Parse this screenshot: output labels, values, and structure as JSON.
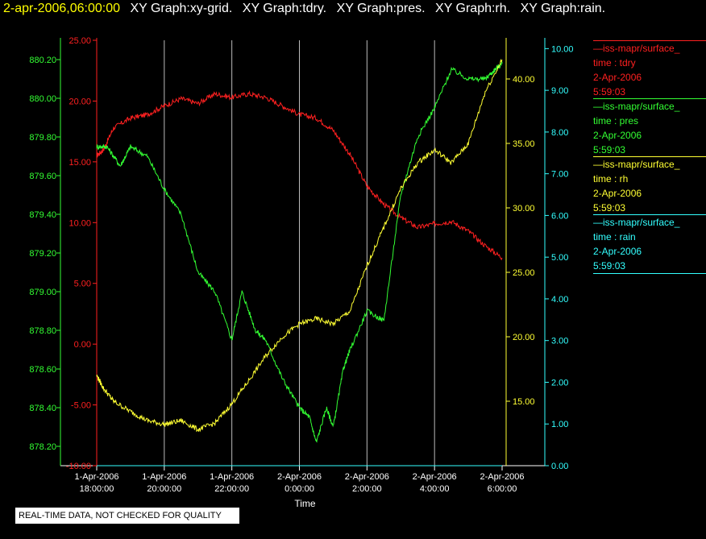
{
  "header": {
    "date": "2-apr-2006,06:00:00",
    "graphs": [
      "XY Graph:xy-grid.",
      "XY Graph:tdry.",
      "XY Graph:pres.",
      "XY Graph:rh.",
      "XY Graph:rain."
    ]
  },
  "legend": [
    {
      "source": "—iss-mapr/surface_",
      "field": "time : tdry",
      "date": "2-Apr-2006",
      "time": "5:59:03",
      "color": "#ff2020"
    },
    {
      "source": "—iss-mapr/surface_",
      "field": "time : pres",
      "date": "2-Apr-2006",
      "time": "5:59:03",
      "color": "#33ff33"
    },
    {
      "source": "—iss-mapr/surface_",
      "field": "time : rh",
      "date": "2-Apr-2006",
      "time": "5:59:03",
      "color": "#ffff33"
    },
    {
      "source": "—iss-mapr/surface_",
      "field": "time : rain",
      "date": "2-Apr-2006",
      "time": "5:59:03",
      "color": "#33ffff"
    }
  ],
  "note": "REAL-TIME DATA, NOT CHECKED FOR QUALITY",
  "colors": {
    "tdry": "#ff2020",
    "pres": "#33ff33",
    "rh": "#ffff33",
    "rain": "#33ffff",
    "grid": "#bbbbbb"
  },
  "chart_data": {
    "type": "line",
    "xlabel": "Time",
    "x_tick_labels": [
      [
        "1-Apr-2006",
        "18:00:00"
      ],
      [
        "1-Apr-2006",
        "20:00:00"
      ],
      [
        "1-Apr-2006",
        "22:00:00"
      ],
      [
        "2-Apr-2006",
        "0:00:00"
      ],
      [
        "2-Apr-2006",
        "2:00:00"
      ],
      [
        "2-Apr-2006",
        "4:00:00"
      ],
      [
        "2-Apr-2006",
        "6:00:00"
      ]
    ],
    "x_range_hours": [
      18,
      30
    ],
    "axes": {
      "tdry": {
        "ylim": [
          -10,
          25
        ],
        "ticks": [
          "-10.00",
          "-5.00",
          "0.00",
          "5.00",
          "10.00",
          "15.00",
          "20.00",
          "25.00"
        ]
      },
      "pres": {
        "ylim": [
          878.1,
          880.3
        ],
        "ticks": [
          "878.20",
          "878.40",
          "878.60",
          "878.80",
          "879.00",
          "879.20",
          "879.40",
          "879.60",
          "879.80",
          "880.00",
          "880.20"
        ]
      },
      "rh": {
        "ylim": [
          10,
          43
        ],
        "ticks": [
          "15.00",
          "20.00",
          "25.00",
          "30.00",
          "35.00",
          "40.00"
        ]
      },
      "rain": {
        "ylim": [
          0,
          10.2
        ],
        "ticks": [
          "0.00",
          "1.00",
          "2.00",
          "3.00",
          "4.00",
          "5.00",
          "6.00",
          "7.00",
          "8.00",
          "9.00",
          "10.00"
        ]
      }
    },
    "series": [
      {
        "name": "time : tdry",
        "key": "tdry",
        "x": [
          18.0,
          18.2,
          18.5,
          19.0,
          19.5,
          20.0,
          20.5,
          21.0,
          21.5,
          22.0,
          22.5,
          23.0,
          23.5,
          24.0,
          24.5,
          25.0,
          25.5,
          26.0,
          26.5,
          27.0,
          27.5,
          28.0,
          28.5,
          29.0,
          29.5,
          30.0
        ],
        "y": [
          15.5,
          16.0,
          17.8,
          18.6,
          18.9,
          19.6,
          20.2,
          19.8,
          20.6,
          20.3,
          20.6,
          20.3,
          19.6,
          18.9,
          18.6,
          17.6,
          15.6,
          13.0,
          11.5,
          10.4,
          9.6,
          9.9,
          10.1,
          9.3,
          8.1,
          7.1
        ]
      },
      {
        "name": "time : pres",
        "key": "pres",
        "x": [
          18.0,
          18.3,
          18.7,
          19.0,
          19.5,
          20.0,
          20.5,
          21.0,
          21.5,
          22.0,
          22.3,
          22.7,
          23.0,
          23.5,
          24.0,
          24.3,
          24.5,
          24.8,
          25.0,
          25.3,
          25.5,
          26.0,
          26.5,
          27.0,
          27.5,
          28.0,
          28.5,
          29.0,
          29.5,
          29.8,
          30.0
        ],
        "y": [
          879.75,
          879.75,
          879.65,
          879.75,
          879.7,
          879.53,
          879.4,
          879.1,
          879.0,
          878.75,
          879.0,
          878.8,
          878.75,
          878.55,
          878.4,
          878.35,
          878.22,
          878.4,
          878.3,
          878.6,
          878.7,
          878.9,
          878.85,
          879.5,
          879.8,
          879.95,
          880.15,
          880.1,
          880.1,
          880.15,
          880.18
        ]
      },
      {
        "name": "time : rh",
        "key": "rh",
        "x": [
          18.0,
          18.2,
          18.5,
          19.0,
          19.5,
          20.0,
          20.5,
          21.0,
          21.5,
          22.0,
          22.5,
          23.0,
          23.5,
          24.0,
          24.5,
          25.0,
          25.5,
          26.0,
          26.5,
          27.0,
          27.5,
          28.0,
          28.5,
          29.0,
          29.5,
          30.0
        ],
        "y": [
          17.0,
          16.0,
          15.0,
          14.2,
          13.5,
          13.2,
          13.5,
          12.8,
          13.3,
          14.8,
          16.6,
          18.5,
          20.0,
          21.0,
          21.4,
          21.0,
          22.0,
          25.5,
          28.5,
          31.5,
          33.5,
          34.5,
          33.5,
          35.0,
          39.0,
          41.5
        ]
      },
      {
        "name": "time : rain",
        "key": "rain",
        "x": [
          18,
          30
        ],
        "y": [
          0.0,
          0.0
        ]
      }
    ]
  }
}
